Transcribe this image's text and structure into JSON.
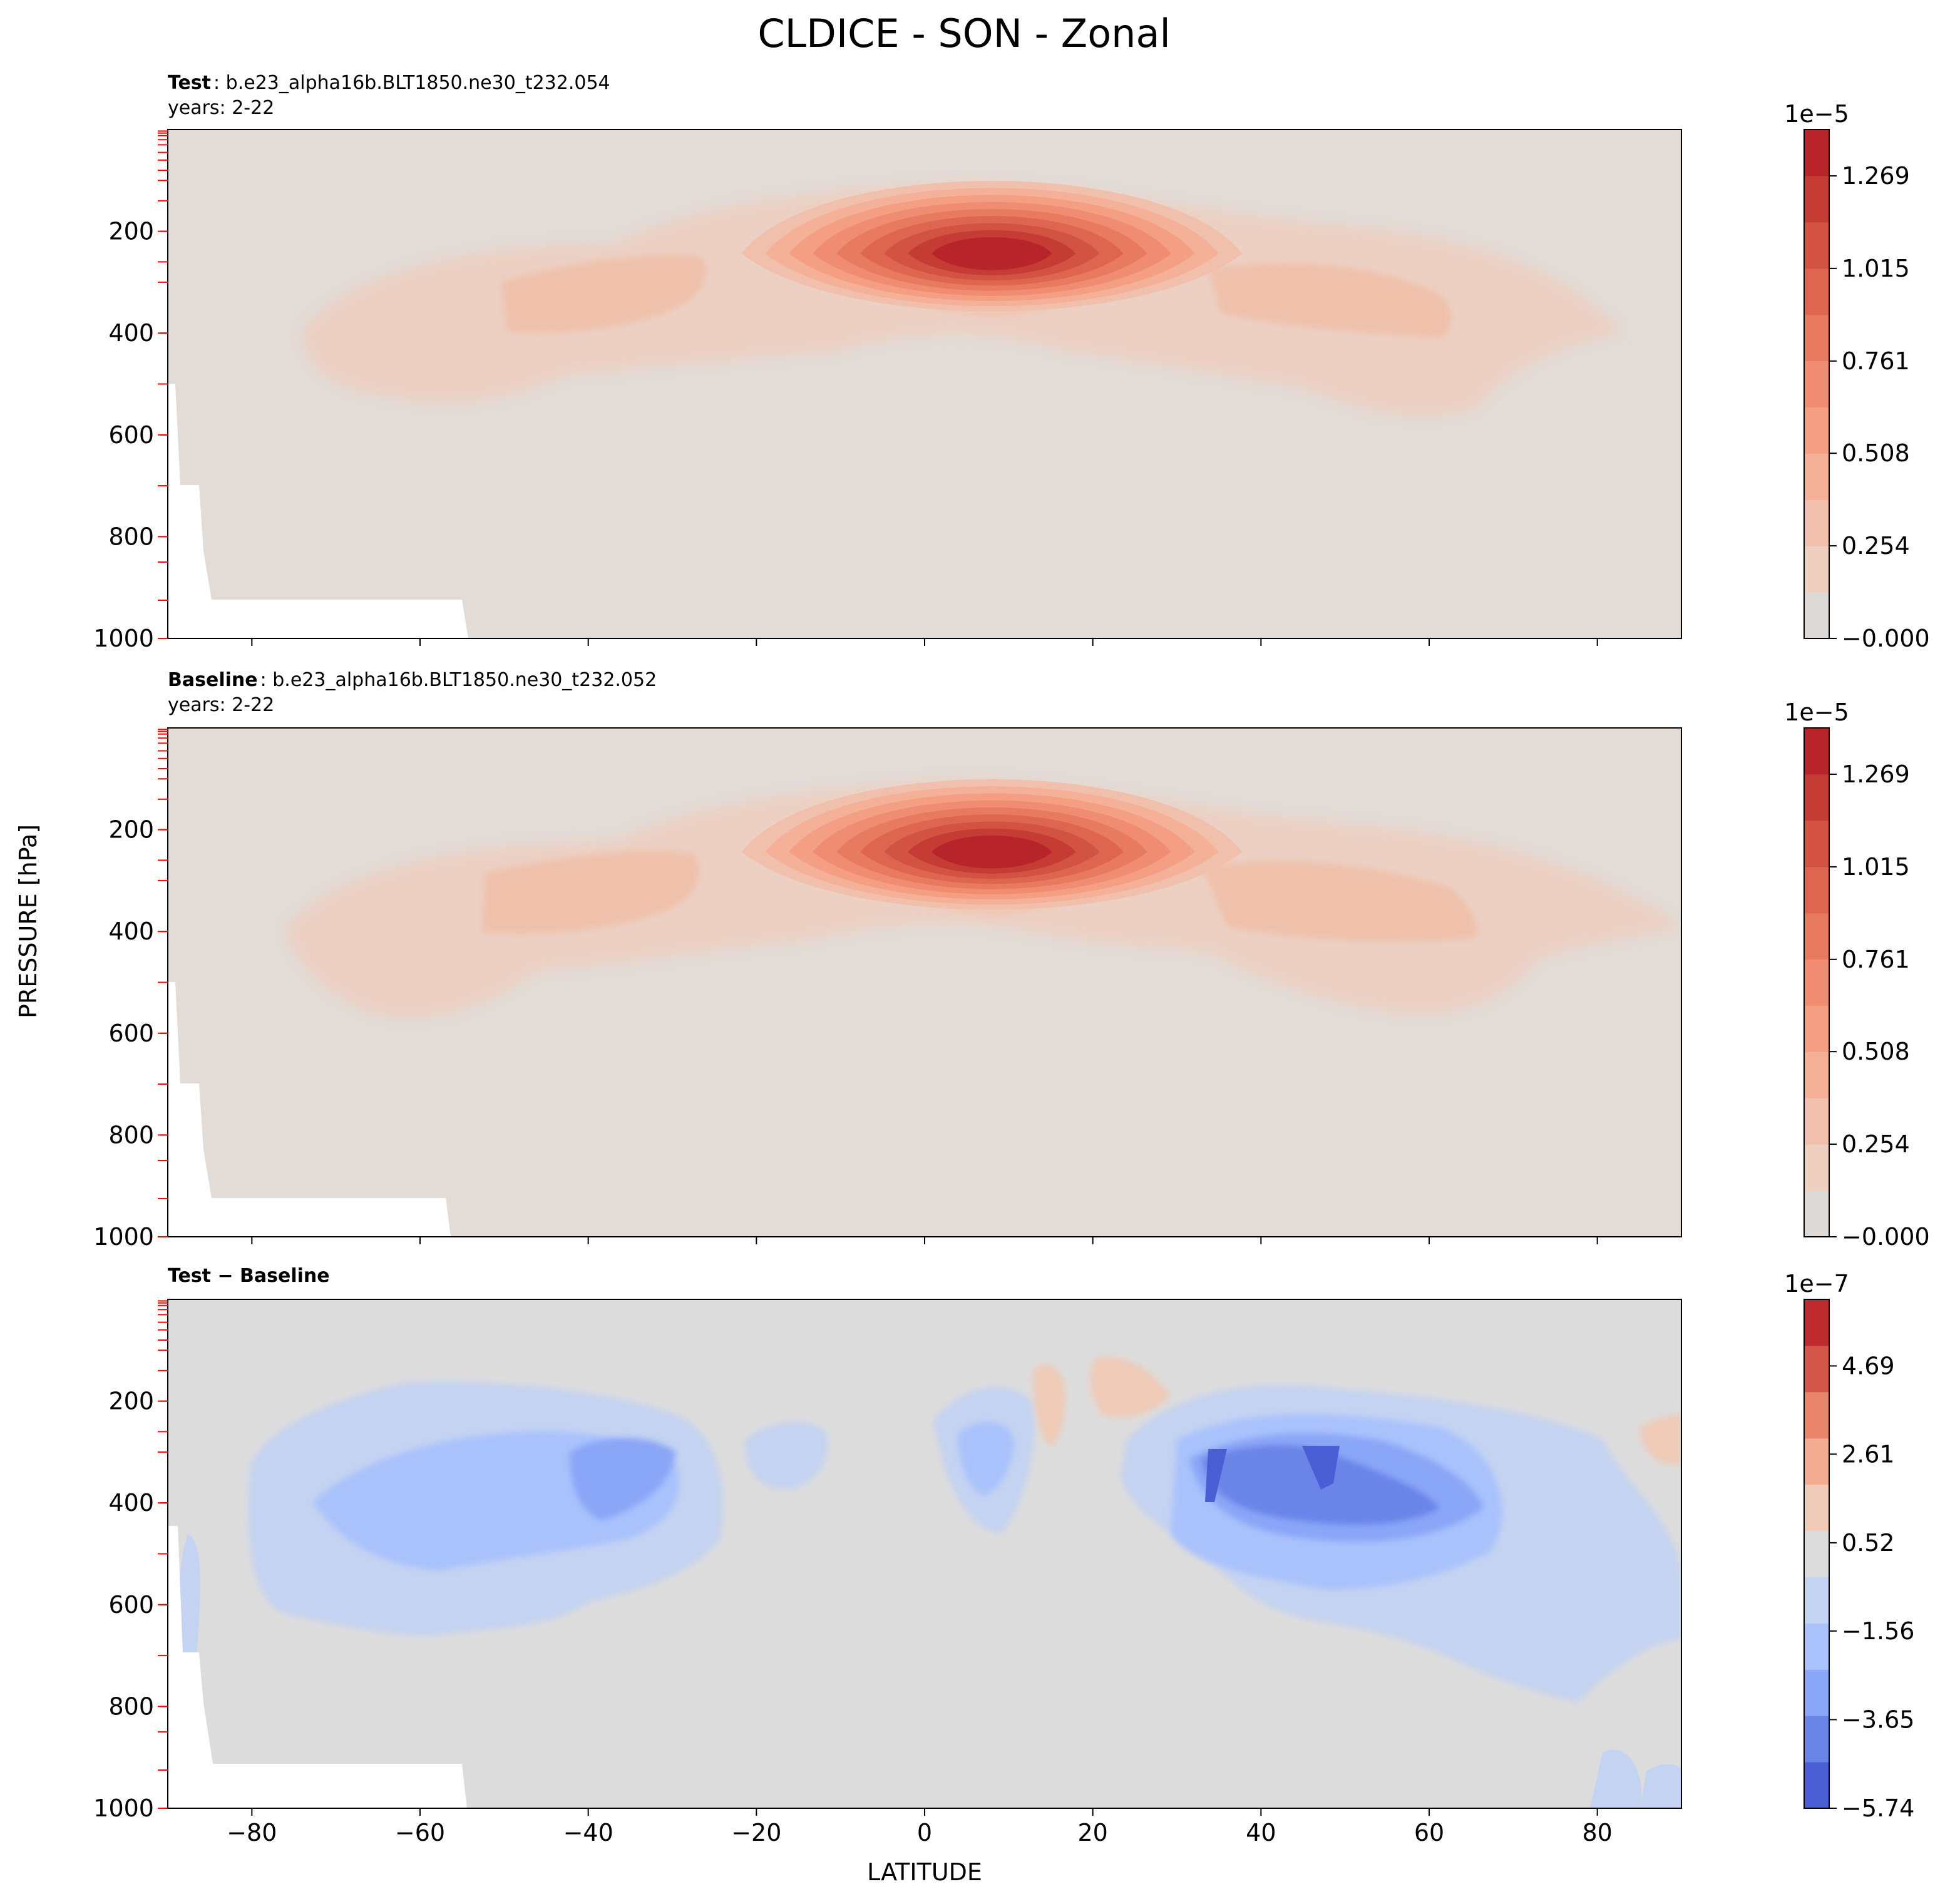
{
  "figure": {
    "title": "CLDICE - SON - Zonal",
    "ylabel": "PRESSURE [hPa]",
    "xlabel": "LATITUDE"
  },
  "chart_data": [
    {
      "type": "heatmap",
      "title_bold": "Test",
      "title_rest": ": b.e23_alpha16b.BLT1850.ne30_t232.054",
      "subtitle": "years: 2-22",
      "xlim": [
        -90,
        90
      ],
      "ylim": [
        1000,
        0
      ],
      "x_ticks": [
        -80,
        -60,
        -40,
        -20,
        0,
        20,
        40,
        60,
        80
      ],
      "y_ticks": [
        200,
        400,
        600,
        800,
        1000
      ],
      "colorbar": {
        "exponent_label": "1e−5",
        "ticks": [
          "−0.000",
          "0.254",
          "0.508",
          "0.761",
          "1.015",
          "1.269"
        ],
        "tick_values": [
          0.0,
          0.254,
          0.508,
          0.761,
          1.015,
          1.269
        ],
        "vmin": 0.0,
        "vmax": 1.396,
        "colors": [
          "#ddd9d7",
          "#efcfc0",
          "#f1c0ac",
          "#f4b198",
          "#f49f84",
          "#ef8c71",
          "#e87a5f",
          "#de654f",
          "#d25341",
          "#c43c34",
          "#b72429"
        ]
      },
      "features": [
        {
          "name": "equatorial-max",
          "lat": 8,
          "p": 250,
          "value": 1.39
        },
        {
          "name": "sh-midlat-max",
          "lat": -40,
          "p": 300,
          "value": 0.55
        },
        {
          "name": "nh-midlat-max",
          "lat": 52,
          "p": 300,
          "value": 0.55
        }
      ]
    },
    {
      "type": "heatmap",
      "title_bold": "Baseline",
      "title_rest": ": b.e23_alpha16b.BLT1850.ne30_t232.052",
      "subtitle": "years: 2-22",
      "xlim": [
        -90,
        90
      ],
      "ylim": [
        1000,
        0
      ],
      "x_ticks": [
        -80,
        -60,
        -40,
        -20,
        0,
        20,
        40,
        60,
        80
      ],
      "y_ticks": [
        200,
        400,
        600,
        800,
        1000
      ],
      "colorbar": {
        "exponent_label": "1e−5",
        "ticks": [
          "−0.000",
          "0.254",
          "0.508",
          "0.761",
          "1.015",
          "1.269"
        ],
        "tick_values": [
          0.0,
          0.254,
          0.508,
          0.761,
          1.015,
          1.269
        ],
        "vmin": 0.0,
        "vmax": 1.396,
        "colors": [
          "#ddd9d7",
          "#efcfc0",
          "#f1c0ac",
          "#f4b198",
          "#f49f84",
          "#ef8c71",
          "#e87a5f",
          "#de654f",
          "#d25341",
          "#c43c34",
          "#b72429"
        ]
      },
      "features": [
        {
          "name": "equatorial-max",
          "lat": 8,
          "p": 250,
          "value": 1.39
        },
        {
          "name": "sh-midlat-max",
          "lat": -38,
          "p": 300,
          "value": 0.55
        },
        {
          "name": "nh-midlat-max",
          "lat": 50,
          "p": 320,
          "value": 0.5
        }
      ]
    },
    {
      "type": "heatmap",
      "title_bold": "Test − Baseline",
      "title_rest": "",
      "subtitle": "",
      "xlim": [
        -90,
        90
      ],
      "ylim": [
        1000,
        0
      ],
      "x_ticks": [
        -80,
        -60,
        -40,
        -20,
        0,
        20,
        40,
        60,
        80
      ],
      "y_ticks": [
        200,
        400,
        600,
        800,
        1000
      ],
      "colorbar": {
        "exponent_label": "1e−7",
        "ticks": [
          "−5.74",
          "−3.65",
          "−1.56",
          "0.52",
          "2.61",
          "4.69"
        ],
        "tick_values": [
          -5.74,
          -3.65,
          -1.56,
          0.52,
          2.61,
          4.69
        ],
        "vmin": -5.74,
        "vmax": 6.26,
        "colors": [
          "#4a5fd4",
          "#6a84e8",
          "#8aa6f7",
          "#a9c2fc",
          "#c4d3f1",
          "#dcdcdc",
          "#efcbb8",
          "#f2ac92",
          "#e8846a",
          "#d5574a",
          "#bd2b2f"
        ]
      },
      "features": [
        {
          "name": "sh-midlat-min",
          "lat": -38,
          "p": 350,
          "value": -3.0
        },
        {
          "name": "tropical-min",
          "lat": 7,
          "p": 320,
          "value": -3.0
        },
        {
          "name": "tropical-pos",
          "lat": 17,
          "p": 180,
          "value": 0.8
        },
        {
          "name": "nh-midlat-min",
          "lat": 48,
          "p": 370,
          "value": -5.2
        }
      ]
    }
  ]
}
